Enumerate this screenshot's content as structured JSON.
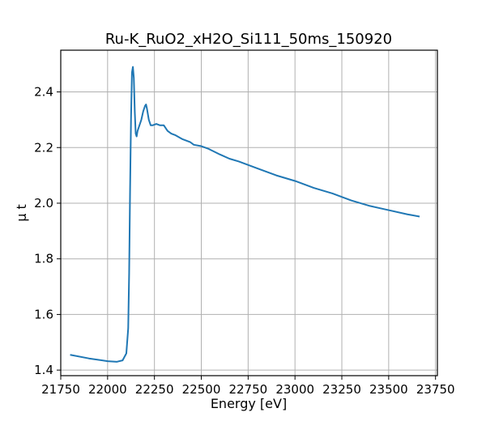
{
  "chart_data": {
    "type": "line",
    "title": "Ru-K_RuO2_xH2O_Si111_50ms_150920",
    "xlabel": "Energy [eV]",
    "ylabel": "μ t",
    "xlim": [
      21750,
      23760
    ],
    "ylim": [
      1.38,
      2.55
    ],
    "xticks": [
      21750,
      22000,
      22250,
      22500,
      22750,
      23000,
      23250,
      23500,
      23750
    ],
    "yticks": [
      1.4,
      1.6,
      1.8,
      2.0,
      2.2,
      2.4
    ],
    "ytick_labels": [
      "1.4",
      "1.6",
      "1.8",
      "2.0",
      "2.2",
      "2.4"
    ],
    "grid": true,
    "series": [
      {
        "color": "#1f77b4",
        "x": [
          21800,
          21900,
          22000,
          22050,
          22080,
          22100,
          22110,
          22115,
          22120,
          22125,
          22130,
          22135,
          22140,
          22145,
          22150,
          22155,
          22160,
          22170,
          22180,
          22190,
          22200,
          22205,
          22210,
          22215,
          22220,
          22230,
          22240,
          22260,
          22280,
          22300,
          22320,
          22340,
          22360,
          22400,
          22440,
          22460,
          22500,
          22540,
          22600,
          22650,
          22700,
          22800,
          22900,
          23000,
          23100,
          23200,
          23300,
          23400,
          23500,
          23600,
          23665
        ],
        "y": [
          1.455,
          1.442,
          1.432,
          1.43,
          1.435,
          1.46,
          1.55,
          1.75,
          2.05,
          2.3,
          2.47,
          2.49,
          2.45,
          2.33,
          2.25,
          2.24,
          2.26,
          2.28,
          2.3,
          2.33,
          2.35,
          2.355,
          2.34,
          2.32,
          2.3,
          2.28,
          2.28,
          2.285,
          2.28,
          2.28,
          2.26,
          2.25,
          2.245,
          2.23,
          2.22,
          2.21,
          2.205,
          2.195,
          2.175,
          2.16,
          2.15,
          2.125,
          2.1,
          2.08,
          2.055,
          2.035,
          2.01,
          1.99,
          1.975,
          1.96,
          1.952
        ]
      }
    ]
  }
}
